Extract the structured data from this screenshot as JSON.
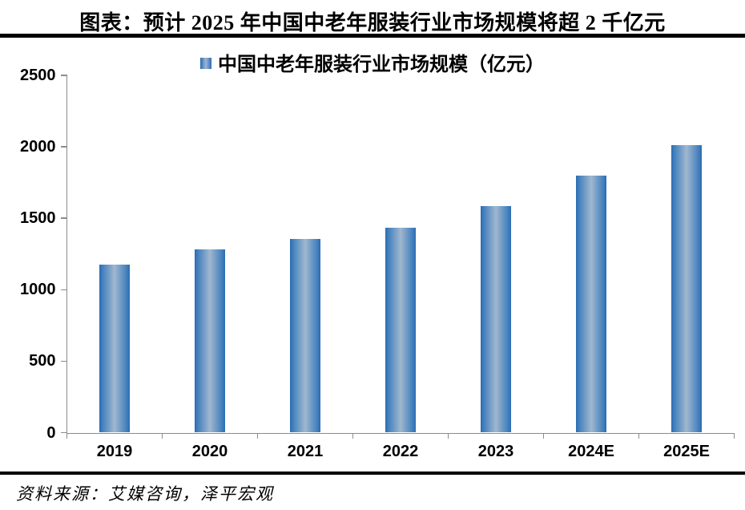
{
  "header": {
    "title": "图表：预计 2025 年中国中老年服装行业市场规模将超 2 千亿元"
  },
  "legend": {
    "label": "中国中老年服装行业市场规模（亿元）"
  },
  "footer": {
    "source": "资料来源：艾媒咨询，泽平宏观"
  },
  "colors": {
    "bar_edge": "#2a6cb4",
    "bar_center": "#a0b7cf",
    "axis": "#8c8c8c",
    "text": "#000000",
    "rule": "#000000"
  },
  "chart_data": {
    "type": "bar",
    "title": "中国中老年服装行业市场规模（亿元）",
    "categories": [
      "2019",
      "2020",
      "2021",
      "2022",
      "2023",
      "2024E",
      "2025E"
    ],
    "values": [
      1176,
      1280,
      1356,
      1435,
      1583,
      1798,
      2013
    ],
    "xlabel": "",
    "ylabel": "",
    "ylim": [
      0,
      2500
    ],
    "yticks": [
      0,
      500,
      1000,
      1500,
      2000,
      2500
    ],
    "grid": false,
    "legend_position": "top-center"
  }
}
